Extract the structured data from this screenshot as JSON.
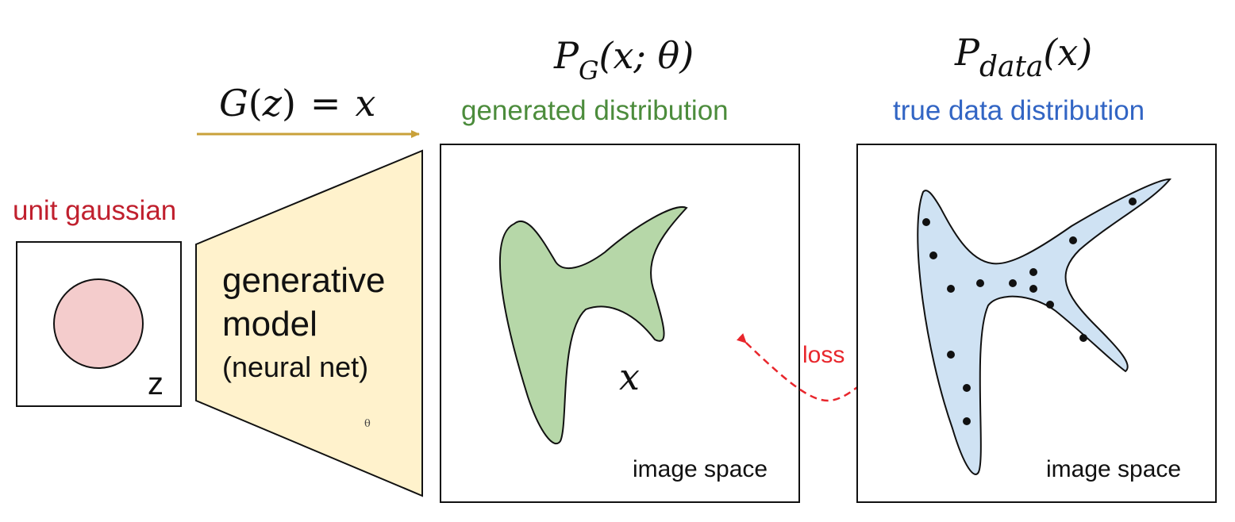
{
  "colors": {
    "gaussian_label": "#c0202e",
    "gaussian_fill": "#f4cccc",
    "generator_fill": "#fff2cc",
    "arrow": "#c9a13a",
    "generated_label": "#4c8c3c",
    "generated_fill": "#b6d7a8",
    "true_label": "#3265c4",
    "true_fill": "#cfe2f3",
    "loss": "#e8262c",
    "outline": "#111111"
  },
  "gaussian": {
    "label": "unit gaussian",
    "variable": "z"
  },
  "generator": {
    "equation": {
      "func": "G",
      "open_paren": "(",
      "arg": "z",
      "close_paren": ")",
      "equals": "=",
      "result": "x"
    },
    "label_line1": "generative",
    "label_line2": "model",
    "label_line3": "(neural net)",
    "param": "θ"
  },
  "generated": {
    "formula": {
      "symbol": "P",
      "subscript": "G",
      "args": "(x; θ)"
    },
    "label": "generated distribution",
    "sample_label": "x",
    "space_label": "image space"
  },
  "true_data": {
    "formula": {
      "symbol": "P",
      "subscript": "data",
      "args": "(x)"
    },
    "label": "true data distribution",
    "space_label": "image space"
  },
  "loss": {
    "label": "loss"
  }
}
